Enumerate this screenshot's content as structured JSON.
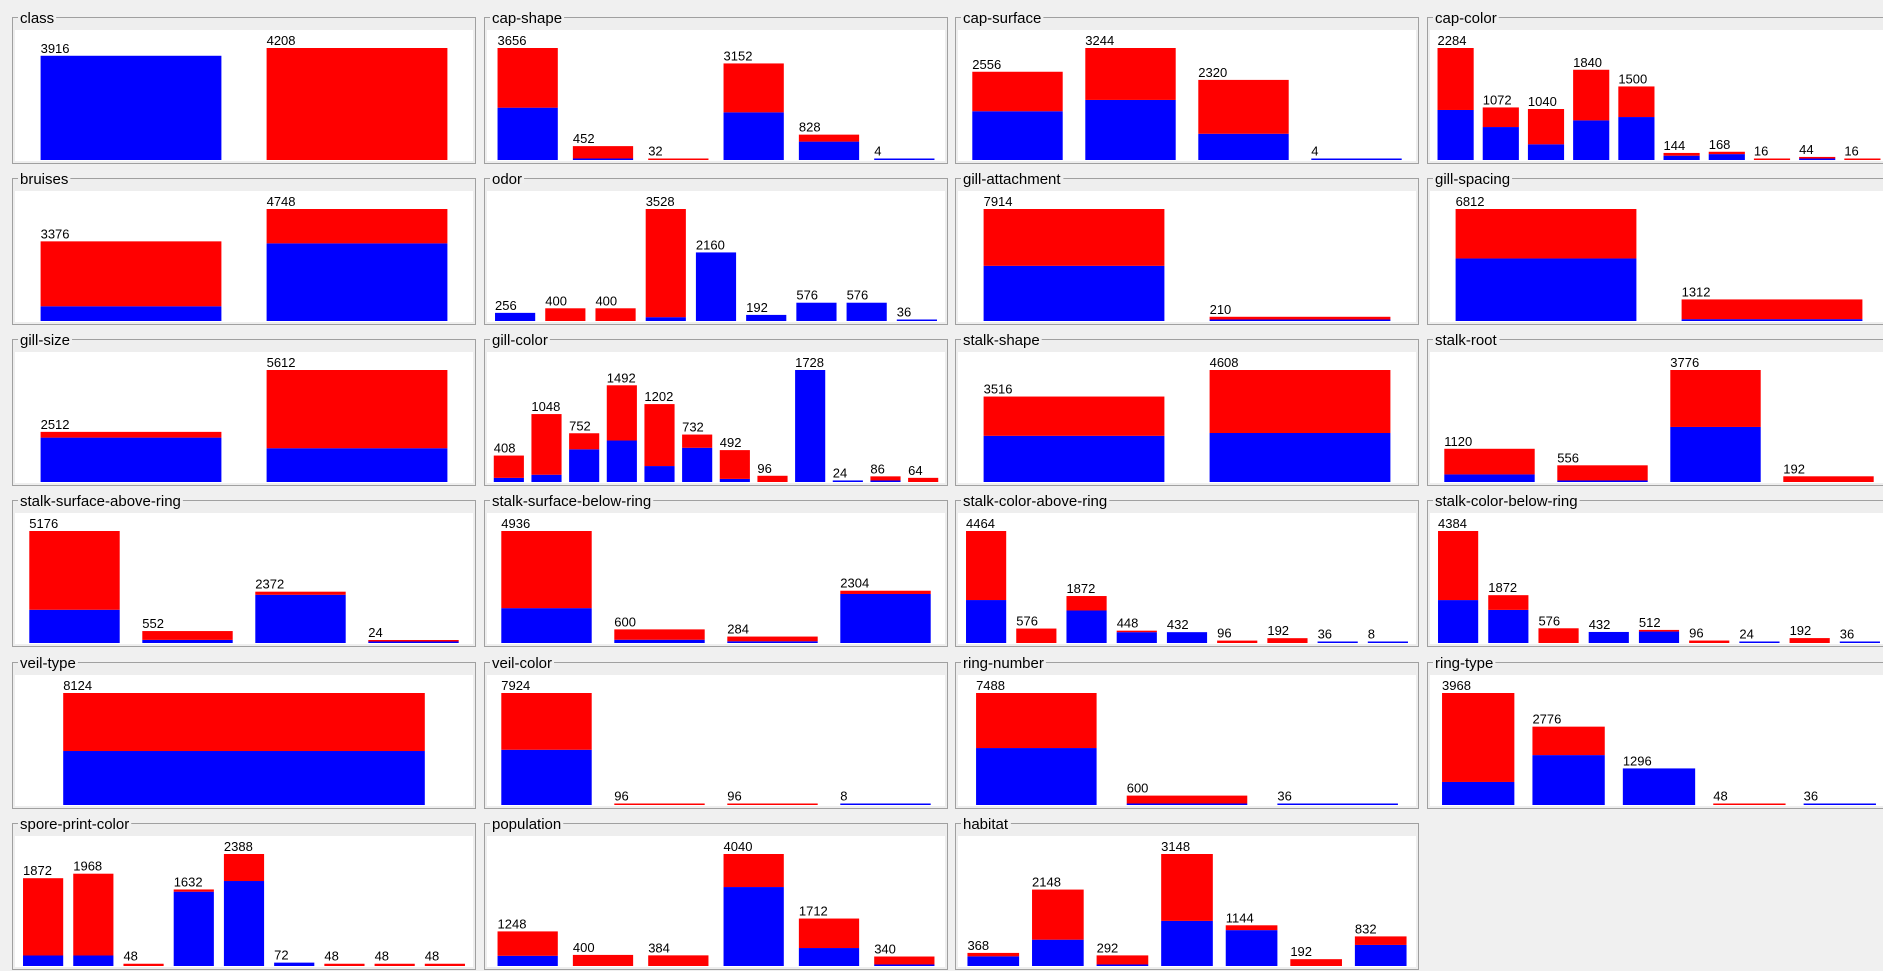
{
  "colors": {
    "blue": "#0000ff",
    "red": "#ff0000"
  },
  "panels": [
    {
      "title": "class",
      "counts": [
        3916,
        4208
      ],
      "blue": [
        3916,
        0
      ],
      "red": [
        0,
        4208
      ]
    },
    {
      "title": "cap-shape",
      "counts": [
        3656,
        452,
        32,
        3152,
        828,
        4
      ],
      "blue": [
        1708,
        48,
        0,
        1556,
        600,
        4
      ],
      "red": [
        1948,
        404,
        32,
        1596,
        228,
        0
      ]
    },
    {
      "title": "cap-surface",
      "counts": [
        2556,
        3244,
        2320,
        4
      ],
      "blue": [
        1412,
        1740,
        760,
        4
      ],
      "red": [
        1144,
        1504,
        1560,
        0
      ]
    },
    {
      "title": "cap-color",
      "counts": [
        2284,
        1072,
        1040,
        1840,
        1500,
        144,
        168,
        16,
        44,
        16
      ],
      "blue": [
        1020,
        672,
        320,
        808,
        876,
        88,
        120,
        0,
        12,
        0
      ],
      "red": [
        1264,
        400,
        720,
        1032,
        624,
        56,
        48,
        16,
        32,
        16
      ]
    },
    {
      "title": "bruises",
      "counts": [
        3376,
        4748
      ],
      "blue": [
        624,
        3292
      ],
      "red": [
        2752,
        1456
      ]
    },
    {
      "title": "odor",
      "counts": [
        256,
        400,
        400,
        3528,
        2160,
        192,
        576,
        576,
        36
      ],
      "blue": [
        256,
        0,
        0,
        120,
        2160,
        192,
        576,
        576,
        36
      ],
      "red": [
        0,
        400,
        400,
        3408,
        0,
        0,
        0,
        0,
        0
      ]
    },
    {
      "title": "gill-attachment",
      "counts": [
        7914,
        210
      ],
      "blue": [
        3898,
        18
      ],
      "red": [
        4016,
        192
      ]
    },
    {
      "title": "gill-spacing",
      "counts": [
        6812,
        1312
      ],
      "blue": [
        3804,
        112
      ],
      "red": [
        3008,
        1200
      ]
    },
    {
      "title": "gill-size",
      "counts": [
        2512,
        5612
      ],
      "blue": [
        2224,
        1692
      ],
      "red": [
        288,
        3920
      ]
    },
    {
      "title": "gill-color",
      "counts": [
        408,
        1048,
        752,
        1492,
        1202,
        732,
        492,
        96,
        1728,
        24,
        86,
        64
      ],
      "blue": [
        64,
        112,
        504,
        640,
        246,
        528,
        48,
        0,
        1728,
        24,
        22,
        0
      ],
      "red": [
        344,
        936,
        248,
        852,
        956,
        204,
        444,
        96,
        0,
        0,
        64,
        64
      ]
    },
    {
      "title": "stalk-shape",
      "counts": [
        3516,
        4608
      ],
      "blue": [
        1900,
        2016
      ],
      "red": [
        1616,
        2592
      ]
    },
    {
      "title": "stalk-root",
      "counts": [
        1120,
        556,
        3776,
        192
      ],
      "blue": [
        256,
        44,
        1856,
        0
      ],
      "red": [
        864,
        512,
        1920,
        192
      ]
    },
    {
      "title": "stalk-surface-above-ring",
      "counts": [
        5176,
        552,
        2372,
        24
      ],
      "blue": [
        1536,
        144,
        2228,
        8
      ],
      "red": [
        3640,
        408,
        144,
        16
      ]
    },
    {
      "title": "stalk-surface-below-ring",
      "counts": [
        4936,
        600,
        284,
        2304
      ],
      "blue": [
        1536,
        144,
        76,
        2160
      ],
      "red": [
        3400,
        456,
        208,
        144
      ]
    },
    {
      "title": "stalk-color-above-ring",
      "counts": [
        4464,
        576,
        1872,
        448,
        432,
        96,
        192,
        36,
        8
      ],
      "blue": [
        1712,
        0,
        1296,
        432,
        432,
        0,
        0,
        36,
        8
      ],
      "red": [
        2752,
        576,
        576,
        16,
        0,
        96,
        192,
        0,
        0
      ]
    },
    {
      "title": "stalk-color-below-ring",
      "counts": [
        4384,
        1872,
        576,
        432,
        512,
        96,
        24,
        192,
        36
      ],
      "blue": [
        1680,
        1296,
        0,
        432,
        448,
        0,
        24,
        0,
        36
      ],
      "red": [
        2704,
        576,
        576,
        0,
        64,
        96,
        0,
        192,
        0
      ]
    },
    {
      "title": "veil-type",
      "counts": [
        8124
      ],
      "blue": [
        3916
      ],
      "red": [
        4208
      ]
    },
    {
      "title": "veil-color",
      "counts": [
        7924,
        96,
        96,
        8
      ],
      "blue": [
        3908,
        0,
        0,
        8
      ],
      "red": [
        4016,
        96,
        96,
        0
      ]
    },
    {
      "title": "ring-number",
      "counts": [
        7488,
        600,
        36
      ],
      "blue": [
        3808,
        72,
        36
      ],
      "red": [
        3680,
        528,
        0
      ]
    },
    {
      "title": "ring-type",
      "counts": [
        3968,
        2776,
        1296,
        48,
        36
      ],
      "blue": [
        816,
        1768,
        1296,
        0,
        36
      ],
      "red": [
        3152,
        1008,
        0,
        48,
        0
      ]
    },
    {
      "title": "spore-print-color",
      "counts": [
        1872,
        1968,
        48,
        1632,
        2388,
        72,
        48,
        48,
        48
      ],
      "blue": [
        224,
        224,
        0,
        1584,
        1812,
        72,
        0,
        0,
        0
      ],
      "red": [
        1648,
        1744,
        48,
        48,
        576,
        0,
        48,
        48,
        48
      ]
    },
    {
      "title": "population",
      "counts": [
        1248,
        400,
        384,
        4040,
        1712,
        340
      ],
      "blue": [
        368,
        0,
        0,
        2848,
        648,
        52
      ],
      "red": [
        880,
        400,
        384,
        1192,
        1064,
        288
      ]
    },
    {
      "title": "habitat",
      "counts": [
        368,
        2148,
        292,
        3148,
        1144,
        192,
        832
      ],
      "blue": [
        272,
        740,
        36,
        1268,
        1008,
        0,
        592
      ],
      "red": [
        96,
        1408,
        256,
        1880,
        136,
        192,
        240
      ]
    }
  ]
}
